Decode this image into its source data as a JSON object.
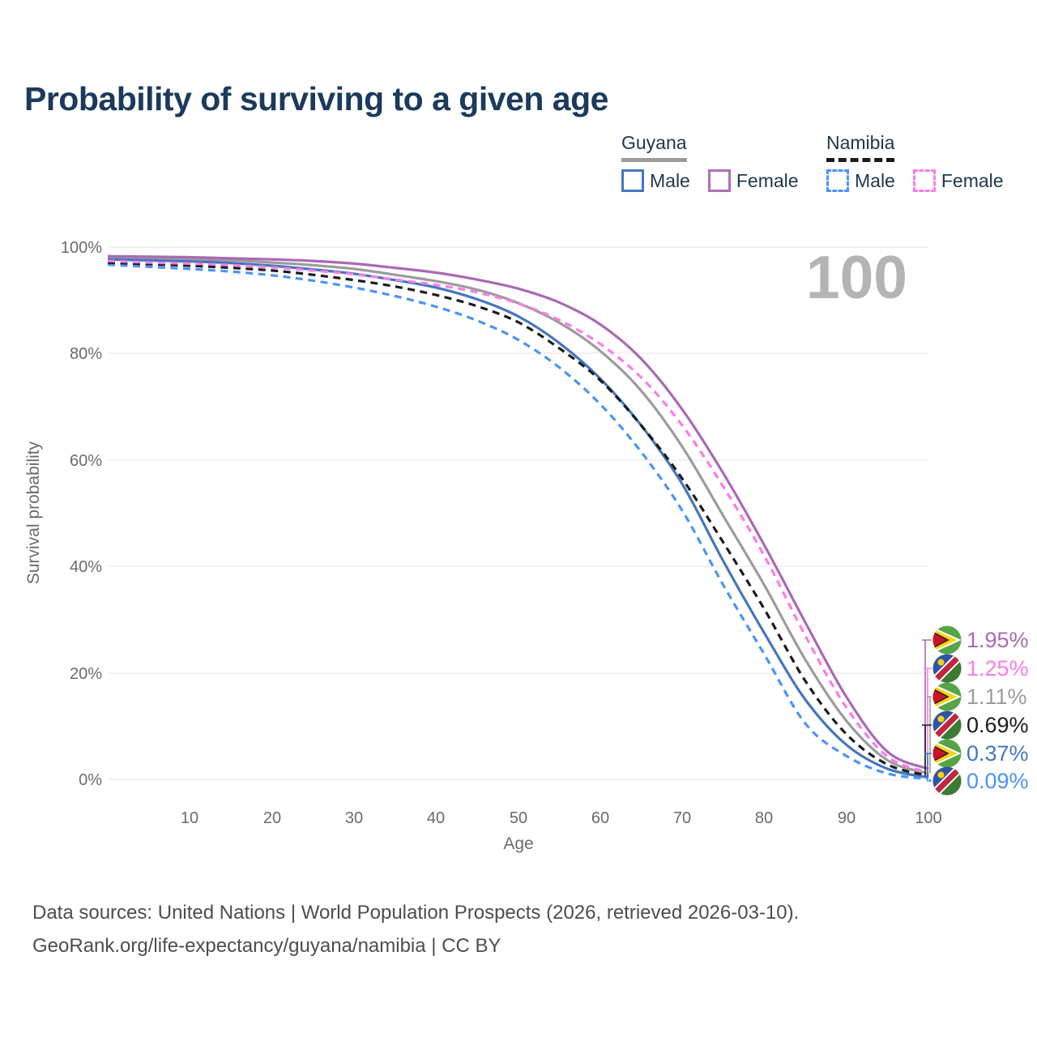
{
  "title": "Probability of surviving to a given age",
  "legend": {
    "groups": [
      {
        "country": "Guyana",
        "line_style": "solid",
        "entries": [
          {
            "label": "Male"
          },
          {
            "label": "Female"
          }
        ]
      },
      {
        "country": "Namibia",
        "line_style": "dashed",
        "entries": [
          {
            "label": "Male"
          },
          {
            "label": "Female"
          }
        ]
      }
    ]
  },
  "colors": {
    "guyana_male": "#4377be",
    "guyana_female": "#aa69b4",
    "guyana_all": "#9c9c9c",
    "namibia_male": "#4b93fa",
    "namibia_female": "#fb7ce8",
    "namibia_all": "#1c1c1c",
    "title_navy": "#1b3a5c",
    "axis_gray": "#6b6b6b",
    "watermark_gray": "#b4b4b4"
  },
  "chart_data": {
    "type": "line",
    "title": "Probability of surviving to a given age",
    "xlabel": "Age",
    "ylabel": "Survival probability",
    "xlim": [
      0,
      100
    ],
    "ylim": [
      0,
      100
    ],
    "grid": "horizontal",
    "legend_position": "top-right",
    "age_indicator": "100",
    "x_tick_labels": [
      "10",
      "20",
      "30",
      "40",
      "50",
      "60",
      "70",
      "80",
      "90",
      "100"
    ],
    "y_tick_labels": [
      "100%",
      "80%",
      "60%",
      "40%",
      "20%",
      "0%"
    ],
    "x": [
      0,
      5,
      10,
      15,
      20,
      25,
      30,
      35,
      40,
      45,
      50,
      55,
      60,
      65,
      70,
      75,
      80,
      85,
      90,
      95,
      100
    ],
    "series": [
      {
        "name": "Guyana Female",
        "country": "Guyana",
        "sex": "female",
        "color": "#aa69b4",
        "dash": false,
        "values": [
          98.3,
          98.2,
          98.1,
          97.9,
          97.7,
          97.4,
          96.9,
          96.1,
          95.2,
          93.9,
          92.2,
          89.6,
          85.5,
          79.0,
          69.5,
          57.5,
          44.0,
          29.5,
          15.5,
          5.2,
          1.95
        ]
      },
      {
        "name": "Namibia Female",
        "country": "Namibia",
        "sex": "female",
        "color": "#fb7ce8",
        "dash": true,
        "values": [
          97.4,
          97.1,
          96.9,
          96.6,
          96.2,
          95.6,
          94.9,
          93.9,
          92.9,
          91.5,
          89.4,
          86.3,
          81.8,
          75.5,
          66.5,
          55.0,
          42.0,
          27.0,
          13.5,
          4.3,
          1.25
        ]
      },
      {
        "name": "Guyana",
        "country": "Guyana",
        "sex": "both",
        "color": "#9c9c9c",
        "dash": false,
        "values": [
          98.0,
          97.8,
          97.7,
          97.5,
          97.1,
          96.6,
          95.9,
          94.8,
          93.6,
          92.0,
          89.5,
          85.8,
          80.5,
          73.0,
          62.5,
          49.5,
          36.5,
          22.5,
          11.0,
          3.6,
          1.11
        ]
      },
      {
        "name": "Namibia",
        "country": "Namibia",
        "sex": "both",
        "color": "#1c1c1c",
        "dash": true,
        "values": [
          97.1,
          96.8,
          96.5,
          96.1,
          95.6,
          94.8,
          93.8,
          92.6,
          91.0,
          88.9,
          85.9,
          81.0,
          75.0,
          66.5,
          56.5,
          44.5,
          32.0,
          18.5,
          8.5,
          2.8,
          0.69
        ]
      },
      {
        "name": "Guyana Male",
        "country": "Guyana",
        "sex": "male",
        "color": "#4377be",
        "dash": false,
        "values": [
          97.7,
          97.5,
          97.3,
          97.0,
          96.5,
          95.8,
          95.0,
          93.8,
          92.4,
          90.2,
          87.0,
          82.0,
          75.3,
          66.5,
          55.5,
          41.0,
          27.5,
          15.0,
          6.5,
          2.0,
          0.37
        ]
      },
      {
        "name": "Namibia Male",
        "country": "Namibia",
        "sex": "male",
        "color": "#4b93fa",
        "dash": true,
        "values": [
          96.7,
          96.3,
          95.9,
          95.4,
          94.7,
          93.7,
          92.4,
          90.8,
          88.8,
          86.2,
          82.6,
          77.4,
          70.5,
          61.5,
          50.5,
          36.5,
          23.5,
          10.5,
          4.4,
          1.1,
          0.09
        ]
      }
    ]
  },
  "end_labels": [
    {
      "flag": "guyana",
      "series": "Guyana Female",
      "value": "1.95%",
      "color": "#aa69b4"
    },
    {
      "flag": "namibia",
      "series": "Namibia Female",
      "value": "1.25%",
      "color": "#fb7ce8"
    },
    {
      "flag": "guyana",
      "series": "Guyana",
      "value": "1.11%",
      "color": "#9c9c9c"
    },
    {
      "flag": "namibia",
      "series": "Namibia",
      "value": "0.69%",
      "color": "#1c1c1c"
    },
    {
      "flag": "guyana",
      "series": "Guyana Male",
      "value": "0.37%",
      "color": "#4377be"
    },
    {
      "flag": "namibia",
      "series": "Namibia Male",
      "value": "0.09%",
      "color": "#4b93fa"
    }
  ],
  "footer": {
    "line1": "Data sources: United Nations | World Population Prospects (2026, retrieved 2026-03-10).",
    "line2": "GeoRank.org/life-expectancy/guyana/namibia | CC BY"
  }
}
